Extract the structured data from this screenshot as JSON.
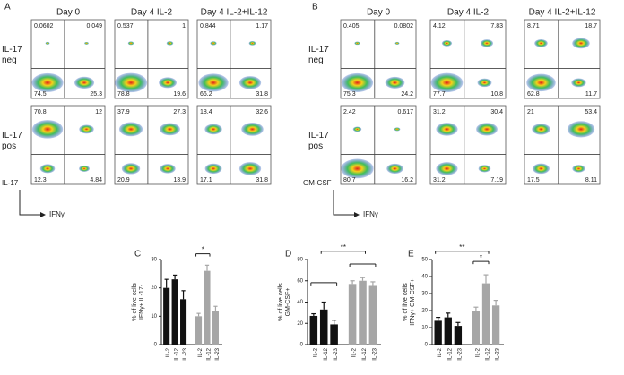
{
  "panels": [
    {
      "label": "A",
      "columns": [
        "Day 0",
        "Day 4  IL-2",
        "Day 4  IL-2+IL-12"
      ],
      "rows": [
        "IL-17 neg",
        "IL-17 pos"
      ],
      "quadrants": [
        [
          [
            0.0602,
            0.049,
            74.5,
            25.3
          ],
          [
            0.537,
            1,
            78.8,
            19.6
          ],
          [
            0.844,
            1.17,
            66.2,
            31.8
          ]
        ],
        [
          [
            70.8,
            12,
            12.3,
            4.84
          ],
          [
            37.9,
            27.3,
            20.9,
            13.9
          ],
          [
            18.4,
            32.6,
            17.1,
            31.8
          ]
        ]
      ],
      "y_axis": "IL-17",
      "x_axis": "IFNγ"
    },
    {
      "label": "B",
      "columns": [
        "Day 0",
        "Day 4  IL-2",
        "Day 4  IL-2+IL-12"
      ],
      "rows": [
        "IL-17 neg",
        "IL-17 pos"
      ],
      "quadrants": [
        [
          [
            0.405,
            0.0802,
            75.3,
            24.2
          ],
          [
            4.12,
            7.83,
            77.7,
            10.8
          ],
          [
            8.71,
            18.7,
            62.8,
            11.7
          ]
        ],
        [
          [
            2.42,
            0.617,
            80.7,
            16.2
          ],
          [
            31.2,
            30.4,
            31.2,
            7.19
          ],
          [
            21,
            53.4,
            17.5,
            8.11
          ]
        ]
      ],
      "y_axis": "GM-CSF",
      "x_axis": "IFNγ"
    }
  ],
  "chart_data": [
    {
      "type": "bar",
      "label": "C",
      "ylabel": [
        "% of live cells",
        "IFNγ+ IL-17-"
      ],
      "categories": [
        "IL-2",
        "IL-12",
        "IL-23",
        "IL-2",
        "IL-12",
        "IL-23"
      ],
      "values": [
        20,
        23,
        16,
        10,
        26,
        12
      ],
      "errors": [
        3,
        1.5,
        3,
        1,
        2,
        1.5
      ],
      "colors": [
        "#111111",
        "#111111",
        "#111111",
        "#a6a6a6",
        "#a6a6a6",
        "#a6a6a6"
      ],
      "ylim": [
        0,
        30
      ],
      "yticks": [
        0,
        10,
        20,
        30
      ],
      "annotations": [
        "*"
      ]
    },
    {
      "type": "bar",
      "label": "D",
      "ylabel": [
        "% of live cells",
        "GM-CSF+"
      ],
      "categories": [
        "IL-2",
        "IL-12",
        "IL-23",
        "IL-2",
        "IL-12",
        "IL-23"
      ],
      "values": [
        27,
        33,
        19,
        57,
        60,
        56
      ],
      "errors": [
        2,
        7,
        4,
        3,
        3,
        3
      ],
      "colors": [
        "#111111",
        "#111111",
        "#111111",
        "#a6a6a6",
        "#a6a6a6",
        "#a6a6a6"
      ],
      "ylim": [
        0,
        80
      ],
      "yticks": [
        0,
        20,
        40,
        60,
        80
      ],
      "annotations": [
        "**"
      ]
    },
    {
      "type": "bar",
      "label": "E",
      "ylabel": [
        "% of live cells",
        "IFNγ+ GM-CSF+"
      ],
      "categories": [
        "IL-2",
        "IL-12",
        "IL-23",
        "IL-2",
        "IL-12",
        "IL-23"
      ],
      "values": [
        14,
        16,
        11,
        20,
        36,
        23
      ],
      "errors": [
        2,
        2.5,
        2,
        2,
        5,
        3
      ],
      "colors": [
        "#111111",
        "#111111",
        "#111111",
        "#a6a6a6",
        "#a6a6a6",
        "#a6a6a6"
      ],
      "ylim": [
        0,
        50
      ],
      "yticks": [
        0,
        10,
        20,
        30,
        40,
        50
      ],
      "annotations": [
        "**",
        "*"
      ]
    }
  ]
}
